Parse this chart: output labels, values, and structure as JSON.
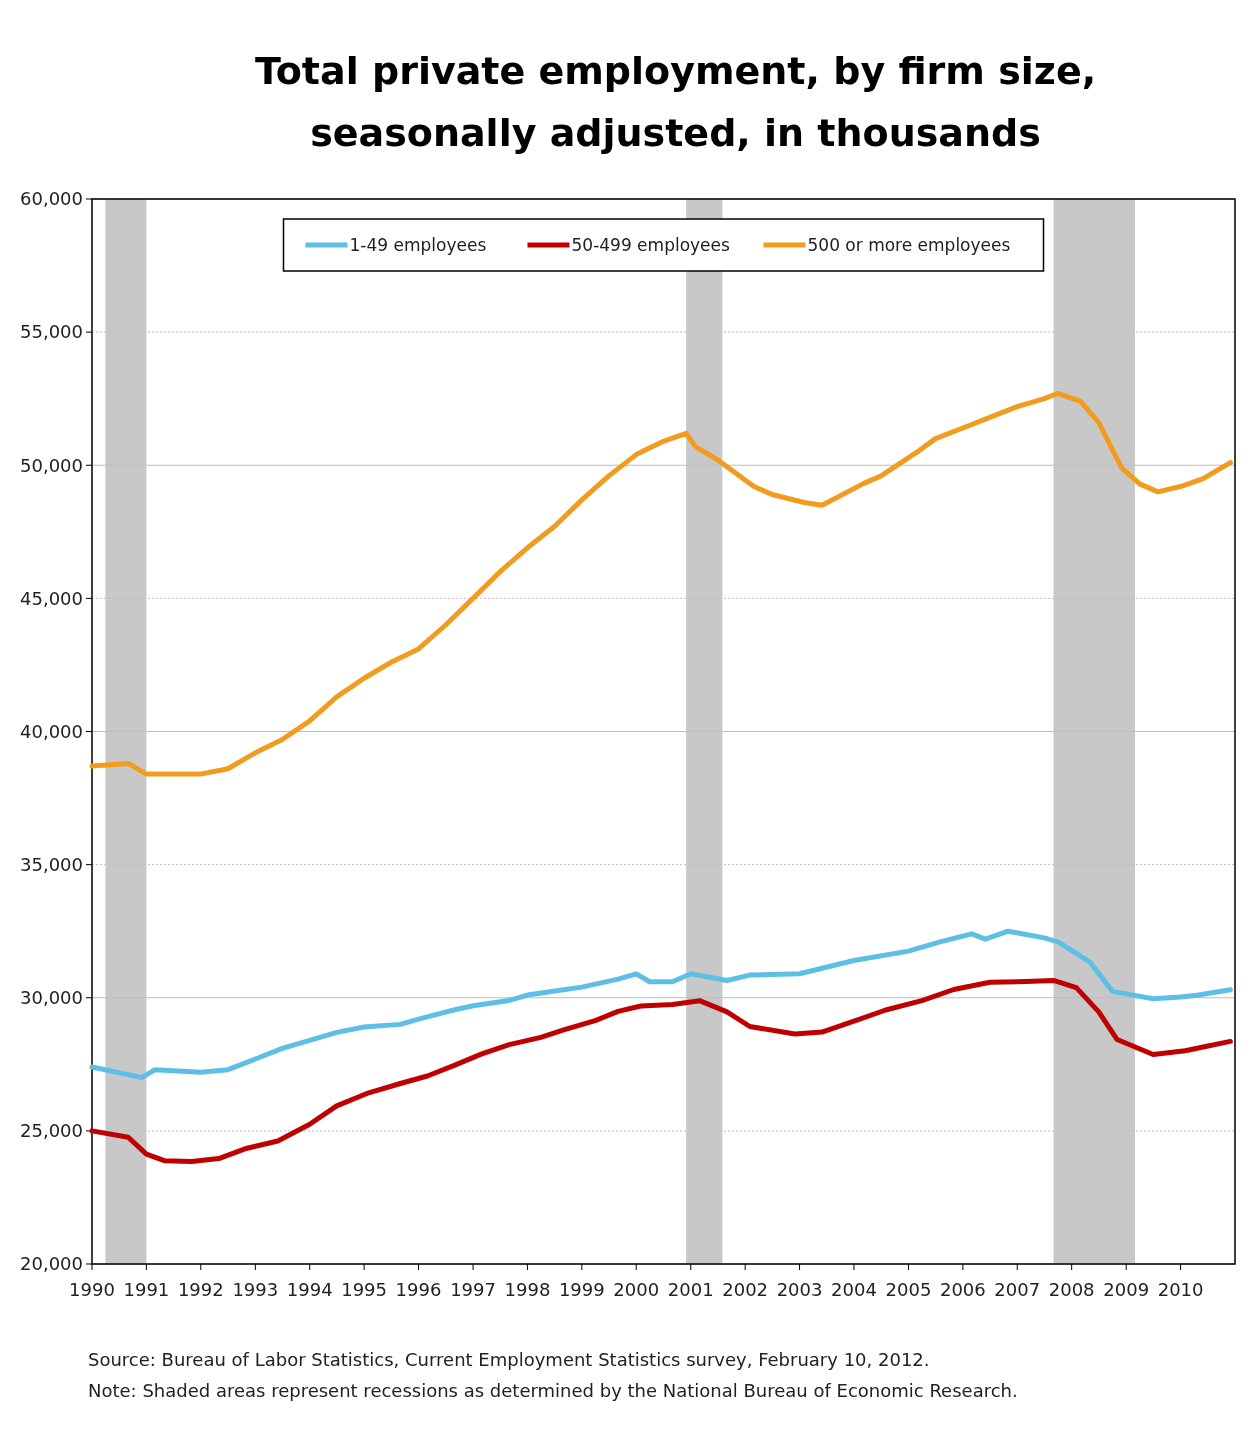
{
  "chart_data": {
    "type": "line",
    "title": "Total private employment, by firm size,\nseasonally adjusted, in thousands",
    "xlim": [
      "1990-01",
      "2011-01"
    ],
    "xticks": [
      "1990",
      "1991",
      "1992",
      "1993",
      "1994",
      "1995",
      "1996",
      "1997",
      "1998",
      "1999",
      "2000",
      "2001",
      "2002",
      "2003",
      "2004",
      "2005",
      "2006",
      "2007",
      "2008",
      "2009",
      "2010"
    ],
    "ylim": [
      20000,
      60000
    ],
    "yticks": [
      {
        "value": 20000,
        "label": "20,000"
      },
      {
        "value": 25000,
        "label": "25,000"
      },
      {
        "value": 30000,
        "label": "30,000"
      },
      {
        "value": 35000,
        "label": "35,000"
      },
      {
        "value": 40000,
        "label": "40,000"
      },
      {
        "value": 45000,
        "label": "45,000"
      },
      {
        "value": 50000,
        "label": "50,000"
      },
      {
        "value": 55000,
        "label": "55,000"
      },
      {
        "value": 60000,
        "label": "60,000"
      }
    ],
    "grid": "y",
    "legend": "top",
    "line_style": "solid",
    "marker": "none",
    "series": [
      {
        "name": "1-49 employees",
        "color": "#5ebfe6",
        "x": [
          "1990-01",
          "1990-12",
          "1991-03",
          "1992-01",
          "1992-07",
          "1993-01",
          "1993-07",
          "1994-01",
          "1994-07",
          "1995-01",
          "1995-09",
          "1996-01",
          "1996-09",
          "1997-01",
          "1997-09",
          "1998-01",
          "1998-09",
          "1999-01",
          "1999-09",
          "2000-01",
          "2000-04",
          "2000-09",
          "2001-01",
          "2001-09",
          "2002-02",
          "2003-01",
          "2004-01",
          "2005-01",
          "2005-08",
          "2006-03",
          "2006-06",
          "2006-11",
          "2007-07",
          "2007-10",
          "2008-05",
          "2008-10",
          "2009-07",
          "2010-01",
          "2010-05",
          "2010-12"
        ],
        "values": [
          27400,
          27000,
          27300,
          27200,
          27300,
          27700,
          28100,
          28400,
          28700,
          28900,
          29000,
          29200,
          29550,
          29700,
          29900,
          30100,
          30300,
          30400,
          30700,
          30900,
          30600,
          30600,
          30900,
          30650,
          30850,
          30900,
          31400,
          31750,
          32100,
          32400,
          32200,
          32500,
          32250,
          32100,
          31350,
          30240,
          29960,
          30030,
          30100,
          30300
        ]
      },
      {
        "name": "50-499 employees",
        "color": "#c00000",
        "x": [
          "1990-01",
          "1990-09",
          "1991-01",
          "1991-05",
          "1991-11",
          "1992-05",
          "1992-11",
          "1993-06",
          "1994-01",
          "1994-07",
          "1995-02",
          "1995-09",
          "1996-03",
          "1996-09",
          "1997-03",
          "1997-09",
          "1998-04",
          "1998-09",
          "1999-04",
          "1999-09",
          "2000-02",
          "2000-09",
          "2001-03",
          "2001-09",
          "2002-02",
          "2002-12",
          "2003-06",
          "2004-01",
          "2004-08",
          "2005-04",
          "2005-11",
          "2006-07",
          "2007-03",
          "2007-09",
          "2008-02",
          "2008-07",
          "2008-11",
          "2009-07",
          "2010-02",
          "2010-06",
          "2010-12"
        ],
        "values": [
          25000,
          24760,
          24130,
          23880,
          23850,
          23960,
          24340,
          24620,
          25250,
          25940,
          26430,
          26780,
          27060,
          27470,
          27890,
          28240,
          28510,
          28790,
          29140,
          29490,
          29690,
          29750,
          29890,
          29470,
          28920,
          28640,
          28710,
          29120,
          29540,
          29890,
          30310,
          30580,
          30610,
          30650,
          30380,
          29470,
          28430,
          27870,
          28010,
          28150,
          28360
        ]
      },
      {
        "name": "500 or more employees",
        "color": "#f29c1f",
        "x": [
          "1990-01",
          "1990-09",
          "1991-01",
          "1992-01",
          "1992-07",
          "1993-01",
          "1993-07",
          "1994-01",
          "1994-07",
          "1995-01",
          "1995-07",
          "1996-01",
          "1996-07",
          "1997-01",
          "1997-07",
          "1998-01",
          "1998-07",
          "1999-01",
          "1999-07",
          "2000-01",
          "2000-07",
          "2000-12",
          "2001-02",
          "2001-07",
          "2002-03",
          "2002-07",
          "2003-02",
          "2003-06",
          "2004-03",
          "2004-07",
          "2005-03",
          "2005-07",
          "2006-01",
          "2006-07",
          "2007-01",
          "2007-07",
          "2007-10",
          "2008-03",
          "2008-07",
          "2008-12",
          "2009-04",
          "2009-08",
          "2010-01",
          "2010-06",
          "2010-12"
        ],
        "values": [
          38700,
          38800,
          38400,
          38400,
          38600,
          39200,
          39700,
          40400,
          41300,
          42000,
          42600,
          43100,
          44000,
          45000,
          46000,
          46900,
          47700,
          48700,
          49600,
          50400,
          50900,
          51200,
          50700,
          50200,
          49200,
          48900,
          48600,
          48500,
          49300,
          49600,
          50500,
          51000,
          51400,
          51800,
          52200,
          52500,
          52700,
          52400,
          51600,
          49900,
          49300,
          49000,
          49200,
          49500,
          50100
        ]
      }
    ],
    "bands": [
      {
        "axis": "x",
        "from": "1990-04",
        "to": "1991-01",
        "color": "#c8c8c8"
      },
      {
        "axis": "x",
        "from": "2000-12",
        "to": "2001-08",
        "color": "#c8c8c8"
      },
      {
        "axis": "x",
        "from": "2007-09",
        "to": "2009-03",
        "color": "#c8c8c8"
      }
    ],
    "annotations": [
      "Source: Bureau of Labor Statistics, Current Employment Statistics survey, February 10, 2012.",
      "Note: Shaded areas represent recessions as determined by the National Bureau of Economic Research."
    ]
  }
}
